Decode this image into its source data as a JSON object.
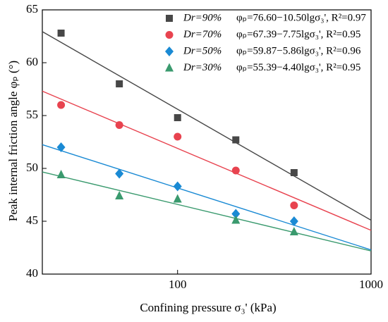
{
  "chart_data": {
    "type": "scatter",
    "xlabel": "Confining pressure σ₃' (kPa)",
    "ylabel": "Peak internal friction angle φₚ (°)",
    "x": [
      25,
      50,
      100,
      200,
      400
    ],
    "xlog": true,
    "xlim": [
      20,
      1000
    ],
    "xticks": [
      100,
      1000
    ],
    "ylim": [
      40,
      65
    ],
    "yticks": [
      40,
      45,
      50,
      55,
      60,
      65
    ],
    "legend": "top-right",
    "series": [
      {
        "name": "Dr=90%",
        "color": "#474747",
        "marker": "square",
        "values": [
          62.8,
          58.0,
          54.8,
          52.7,
          49.6
        ],
        "fit": {
          "intercept": 76.6,
          "slope": -10.5,
          "label": "φₚ=76.60−10.50lgσ₃', R²=0.97"
        }
      },
      {
        "name": "Dr=70%",
        "color": "#e8434f",
        "marker": "circle",
        "values": [
          56.0,
          54.1,
          53.0,
          49.8,
          46.5
        ],
        "fit": {
          "intercept": 67.39,
          "slope": -7.75,
          "label": "φₚ=67.39−7.75lgσ₃', R²=0.95"
        }
      },
      {
        "name": "Dr=50%",
        "color": "#1a8ad4",
        "marker": "diamond",
        "values": [
          52.0,
          49.5,
          48.3,
          45.7,
          45.0
        ],
        "fit": {
          "intercept": 59.87,
          "slope": -5.86,
          "label": "φₚ=59.87−5.86lgσ₃', R²=0.96"
        }
      },
      {
        "name": "Dr=30%",
        "color": "#3a9a6e",
        "marker": "triangle",
        "values": [
          49.4,
          47.4,
          47.1,
          45.1,
          44.0
        ],
        "fit": {
          "intercept": 55.39,
          "slope": -4.4,
          "label": "φₚ=55.39−4.40lgσ₃', R²=0.95"
        }
      }
    ]
  }
}
